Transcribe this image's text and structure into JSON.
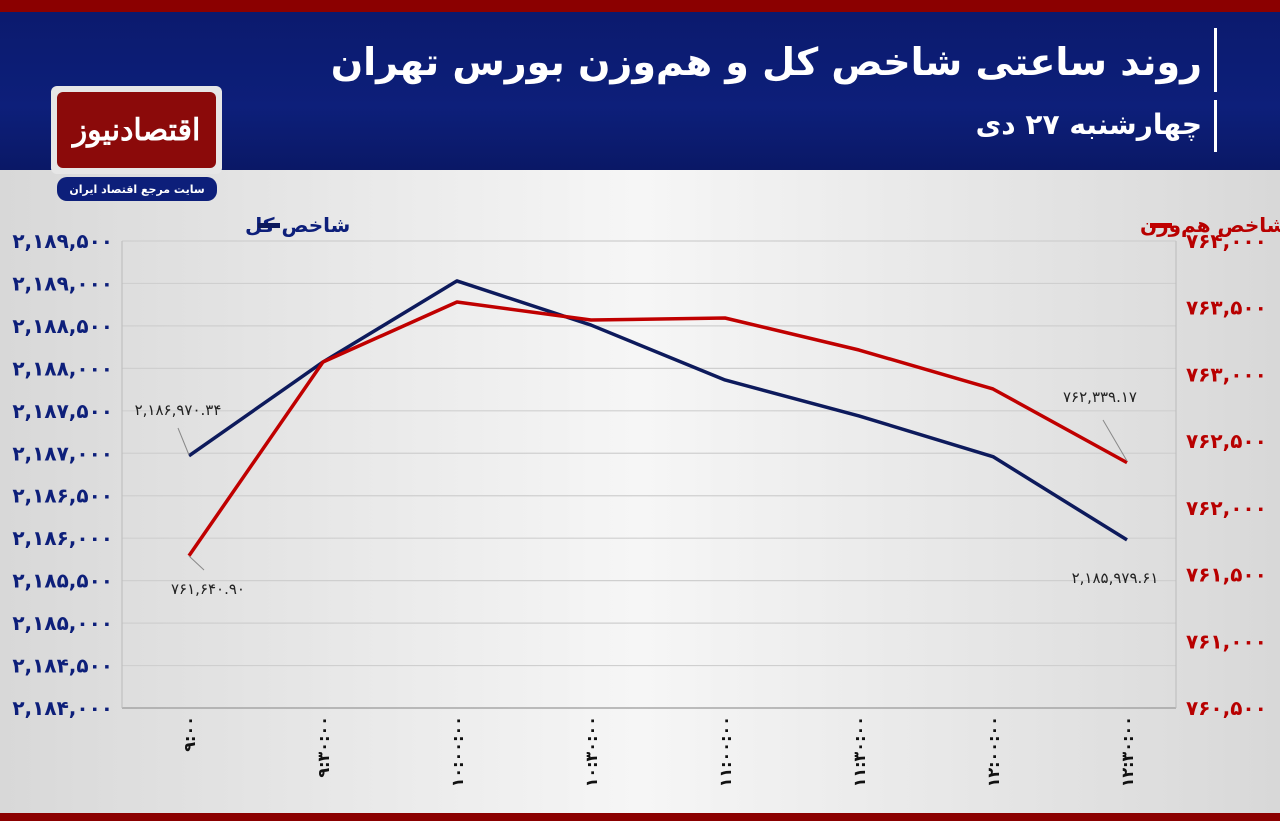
{
  "header": {
    "title": "روند ساعتی شاخص کل و هم‌وزن بورس تهران",
    "subtitle": "چهارشنبه ۲۷ دی"
  },
  "logo": {
    "name": "اقتصادنیوز",
    "tagline": "سایت مرجع اقتصاد ایران"
  },
  "colors": {
    "total": "#0d1a5c",
    "equal": "#c00000",
    "header": "#0d1f7a",
    "accent": "#8b0000"
  },
  "chart_data": {
    "type": "line",
    "title": "روند ساعتی شاخص کل و هم‌وزن بورس تهران",
    "x": [
      "۹:۰۰",
      "۹:۳۰:۰۰",
      "۱۰:۰۰:۰۰",
      "۱۰:۳۰:۰۰",
      "۱۱:۰۰:۰۰",
      "۱۱:۳۰:۰۰",
      "۱۲:۰۰:۰۰",
      "۱۲:۳۰:۰۰"
    ],
    "series": [
      {
        "name": "شاخص کل",
        "axis": "left",
        "values": [
          2186970.34,
          2188075,
          2189030,
          2188510,
          2187863,
          2187440,
          2186960,
          2185979.61
        ]
      },
      {
        "name": "شاخص هم‌وزن",
        "axis": "right",
        "values": [
          761640.9,
          763093,
          763543,
          763408,
          763423,
          763183,
          762891,
          762339.17
        ]
      }
    ],
    "left_axis": {
      "range": [
        2184000,
        2189500
      ],
      "ticks": [
        "۲,۱۸۹,۵۰۰",
        "۲,۱۸۹,۰۰۰",
        "۲,۱۸۸,۵۰۰",
        "۲,۱۸۸,۰۰۰",
        "۲,۱۸۷,۵۰۰",
        "۲,۱۸۷,۰۰۰",
        "۲,۱۸۶,۵۰۰",
        "۲,۱۸۶,۰۰۰",
        "۲,۱۸۵,۵۰۰",
        "۲,۱۸۵,۰۰۰",
        "۲,۱۸۴,۵۰۰",
        "۲,۱۸۴,۰۰۰"
      ]
    },
    "right_axis": {
      "range": [
        760500,
        764000
      ],
      "ticks": [
        "۷۶۴,۰۰۰",
        "۷۶۳,۵۰۰",
        "۷۶۳,۰۰۰",
        "۷۶۲,۵۰۰",
        "۷۶۲,۰۰۰",
        "۷۶۱,۵۰۰",
        "۷۶۱,۰۰۰",
        "۷۶۰,۵۰۰"
      ]
    },
    "data_labels": {
      "total_first": "۲,۱۸۶,۹۷۰.۳۴",
      "total_last": "۲,۱۸۵,۹۷۹.۶۱",
      "equal_first": "۷۶۱,۶۴۰.۹۰",
      "equal_last": "۷۶۲,۳۳۹.۱۷"
    },
    "grid": true,
    "legend": "top"
  }
}
